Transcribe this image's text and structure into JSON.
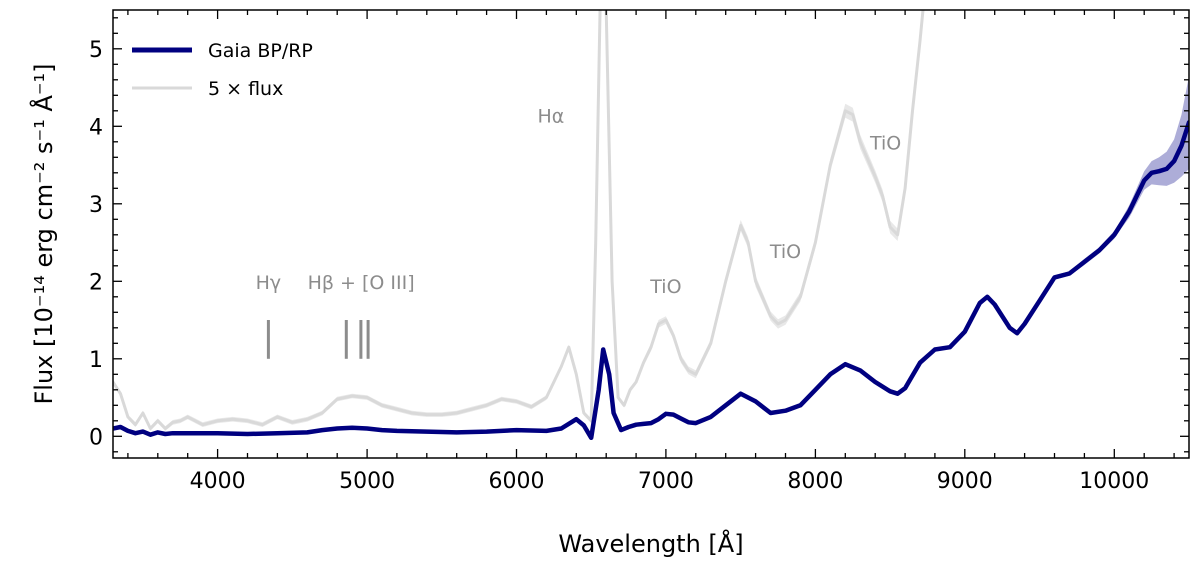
{
  "chart_data": {
    "type": "line",
    "xlabel": "Wavelength [Å]",
    "ylabel": "Flux [10⁻¹⁴ erg cm⁻² s⁻¹ Å⁻¹]",
    "xlim": [
      3300,
      10500
    ],
    "ylim": [
      -0.28,
      5.5
    ],
    "x_ticks": [
      4000,
      5000,
      6000,
      7000,
      8000,
      9000,
      10000
    ],
    "x_tick_labels": [
      "4000",
      "5000",
      "6000",
      "7000",
      "8000",
      "9000",
      "10000"
    ],
    "y_ticks": [
      0,
      1,
      2,
      3,
      4,
      5
    ],
    "y_tick_labels": [
      "0",
      "1",
      "2",
      "3",
      "4",
      "5"
    ],
    "legend": {
      "position": "top-left",
      "entries": [
        {
          "label": "Gaia BP/RP",
          "color": "#000080"
        },
        {
          "label": "5 × flux",
          "color": "#d9d9d9"
        }
      ]
    },
    "series": [
      {
        "name": "Gaia BP/RP",
        "color": "#000080",
        "band_color": "#6a6ab8",
        "x": [
          3300,
          3350,
          3400,
          3450,
          3500,
          3550,
          3600,
          3650,
          3700,
          3800,
          3900,
          4000,
          4200,
          4400,
          4600,
          4700,
          4800,
          4900,
          5000,
          5100,
          5200,
          5400,
          5600,
          5800,
          6000,
          6200,
          6300,
          6400,
          6450,
          6500,
          6550,
          6580,
          6620,
          6650,
          6700,
          6750,
          6800,
          6850,
          6900,
          6950,
          7000,
          7050,
          7100,
          7150,
          7200,
          7300,
          7400,
          7500,
          7600,
          7700,
          7800,
          7900,
          8000,
          8100,
          8200,
          8300,
          8400,
          8500,
          8550,
          8600,
          8700,
          8800,
          8900,
          9000,
          9100,
          9150,
          9200,
          9300,
          9350,
          9400,
          9500,
          9600,
          9700,
          9800,
          9900,
          10000,
          10050,
          10100,
          10150,
          10200,
          10250,
          10300,
          10350,
          10400,
          10450,
          10500
        ],
        "y": [
          0.1,
          0.12,
          0.07,
          0.04,
          0.06,
          0.02,
          0.05,
          0.03,
          0.04,
          0.04,
          0.04,
          0.04,
          0.03,
          0.04,
          0.05,
          0.08,
          0.1,
          0.11,
          0.1,
          0.08,
          0.07,
          0.06,
          0.05,
          0.06,
          0.08,
          0.07,
          0.1,
          0.22,
          0.14,
          -0.02,
          0.6,
          1.12,
          0.8,
          0.3,
          0.08,
          0.12,
          0.15,
          0.16,
          0.17,
          0.22,
          0.29,
          0.28,
          0.23,
          0.18,
          0.17,
          0.25,
          0.4,
          0.55,
          0.45,
          0.3,
          0.33,
          0.4,
          0.6,
          0.8,
          0.93,
          0.85,
          0.7,
          0.58,
          0.55,
          0.62,
          0.95,
          1.12,
          1.15,
          1.35,
          1.72,
          1.8,
          1.7,
          1.4,
          1.33,
          1.45,
          1.75,
          2.05,
          2.1,
          2.25,
          2.4,
          2.6,
          2.75,
          2.9,
          3.1,
          3.3,
          3.4,
          3.42,
          3.45,
          3.55,
          3.75,
          4.05
        ],
        "band": [
          0.01,
          0.01,
          0.01,
          0.01,
          0.01,
          0.01,
          0.01,
          0.01,
          0.01,
          0.01,
          0.01,
          0.01,
          0.01,
          0.01,
          0.01,
          0.01,
          0.01,
          0.01,
          0.01,
          0.01,
          0.01,
          0.01,
          0.01,
          0.01,
          0.01,
          0.01,
          0.01,
          0.01,
          0.01,
          0.01,
          0.01,
          0.01,
          0.01,
          0.01,
          0.01,
          0.01,
          0.01,
          0.01,
          0.01,
          0.01,
          0.01,
          0.01,
          0.01,
          0.01,
          0.01,
          0.01,
          0.01,
          0.01,
          0.01,
          0.01,
          0.01,
          0.01,
          0.01,
          0.01,
          0.01,
          0.01,
          0.01,
          0.01,
          0.01,
          0.01,
          0.01,
          0.01,
          0.01,
          0.01,
          0.01,
          0.01,
          0.01,
          0.01,
          0.01,
          0.01,
          0.02,
          0.03,
          0.03,
          0.04,
          0.04,
          0.05,
          0.06,
          0.08,
          0.1,
          0.12,
          0.15,
          0.18,
          0.22,
          0.28,
          0.4,
          0.6
        ]
      },
      {
        "name": "5 × flux",
        "color": "#d9d9d9",
        "x": [
          3300,
          3350,
          3400,
          3450,
          3500,
          3550,
          3600,
          3650,
          3700,
          3750,
          3800,
          3900,
          4000,
          4100,
          4200,
          4300,
          4400,
          4500,
          4600,
          4700,
          4800,
          4900,
          5000,
          5100,
          5200,
          5300,
          5400,
          5500,
          5600,
          5700,
          5800,
          5900,
          6000,
          6100,
          6200,
          6300,
          6350,
          6400,
          6450,
          6500,
          6530,
          6560,
          6600,
          6640,
          6680,
          6720,
          6760,
          6800,
          6850,
          6900,
          6950,
          7000,
          7050,
          7100,
          7150,
          7200,
          7300,
          7400,
          7500,
          7550,
          7600,
          7700,
          7750,
          7800,
          7900,
          8000,
          8100,
          8200,
          8250,
          8300,
          8400,
          8450,
          8500,
          8550,
          8600,
          8650,
          8700,
          8720
        ],
        "y": [
          0.7,
          0.55,
          0.25,
          0.15,
          0.3,
          0.1,
          0.2,
          0.1,
          0.18,
          0.2,
          0.25,
          0.15,
          0.2,
          0.22,
          0.2,
          0.15,
          0.25,
          0.18,
          0.22,
          0.3,
          0.48,
          0.52,
          0.5,
          0.4,
          0.35,
          0.3,
          0.28,
          0.28,
          0.3,
          0.35,
          0.4,
          0.48,
          0.45,
          0.38,
          0.5,
          0.9,
          1.15,
          0.8,
          0.3,
          0.2,
          2.5,
          5.6,
          5.5,
          2.0,
          0.5,
          0.4,
          0.6,
          0.7,
          0.95,
          1.15,
          1.45,
          1.5,
          1.3,
          1.0,
          0.85,
          0.8,
          1.2,
          2.0,
          2.72,
          2.5,
          2.0,
          1.55,
          1.45,
          1.5,
          1.8,
          2.5,
          3.5,
          4.2,
          4.15,
          3.8,
          3.35,
          3.1,
          2.7,
          2.6,
          3.2,
          4.2,
          5.1,
          5.5
        ],
        "band": [
          0.03,
          0.03,
          0.03,
          0.03,
          0.03,
          0.03,
          0.03,
          0.03,
          0.03,
          0.03,
          0.03,
          0.03,
          0.03,
          0.03,
          0.03,
          0.03,
          0.03,
          0.03,
          0.03,
          0.03,
          0.03,
          0.03,
          0.03,
          0.03,
          0.03,
          0.03,
          0.03,
          0.03,
          0.03,
          0.03,
          0.03,
          0.03,
          0.03,
          0.03,
          0.03,
          0.03,
          0.03,
          0.03,
          0.03,
          0.03,
          0.03,
          0.03,
          0.03,
          0.03,
          0.03,
          0.03,
          0.03,
          0.03,
          0.04,
          0.05,
          0.05,
          0.05,
          0.05,
          0.05,
          0.05,
          0.05,
          0.05,
          0.06,
          0.07,
          0.07,
          0.07,
          0.06,
          0.06,
          0.06,
          0.06,
          0.07,
          0.08,
          0.09,
          0.09,
          0.09,
          0.08,
          0.08,
          0.08,
          0.08,
          0.08,
          0.08,
          0.08,
          0.08
        ]
      }
    ],
    "annotations": [
      {
        "text": "Hγ",
        "x": 4340,
        "y": 1.9
      },
      {
        "text": "Hβ + [O III]",
        "x": 4960,
        "y": 1.9
      },
      {
        "text": "Hα",
        "x": 6230,
        "y": 4.05
      },
      {
        "text": "TiO",
        "x": 7000,
        "y": 1.85
      },
      {
        "text": "TiO",
        "x": 7800,
        "y": 2.3
      },
      {
        "text": "TiO",
        "x": 8470,
        "y": 3.7
      }
    ],
    "line_markers": [
      {
        "x": 4340,
        "y0": 1.0,
        "y1": 1.5
      },
      {
        "x": 4861,
        "y0": 1.0,
        "y1": 1.5
      },
      {
        "x": 4959,
        "y0": 1.0,
        "y1": 1.5
      },
      {
        "x": 5007,
        "y0": 1.0,
        "y1": 1.5
      }
    ]
  }
}
